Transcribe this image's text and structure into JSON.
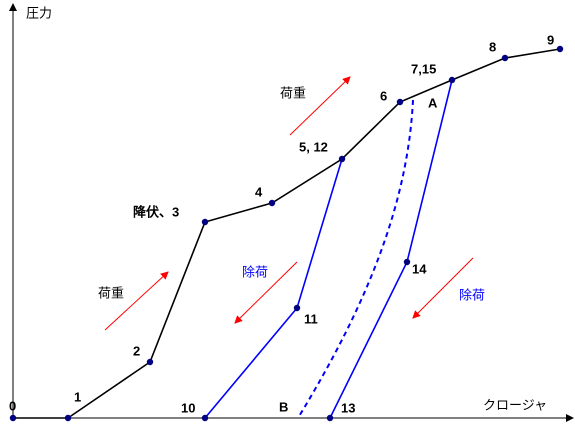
{
  "axes": {
    "y_label": "圧力",
    "x_label": "クロージャ"
  },
  "points": [
    {
      "label": "0"
    },
    {
      "label": "1"
    },
    {
      "label": "2"
    },
    {
      "label": "降伏、3"
    },
    {
      "label": "4"
    },
    {
      "label": "5, 12"
    },
    {
      "label": "6"
    },
    {
      "label": "7,15"
    },
    {
      "label": "8"
    },
    {
      "label": "9"
    },
    {
      "label": "10"
    },
    {
      "label": "11"
    },
    {
      "label": "13"
    },
    {
      "label": "14"
    }
  ],
  "curve_labels": {
    "a": "A",
    "b": "B"
  },
  "annotations": [
    {
      "text": "荷重"
    },
    {
      "text": "荷重"
    },
    {
      "text": "除荷"
    },
    {
      "text": "除荷"
    }
  ]
}
